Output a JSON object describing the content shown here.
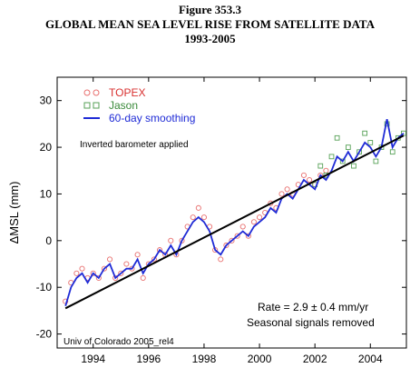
{
  "figure": {
    "number": "Figure 353.3",
    "title": "GLOBAL MEAN SEA LEVEL RISE FROM SATELLITE DATA",
    "subtitle": "1993-2005"
  },
  "chart_data": {
    "type": "scatter",
    "xlim": [
      1992.7,
      2005.3
    ],
    "ylim": [
      -23,
      35
    ],
    "xticks": [
      1994,
      1996,
      1998,
      2000,
      2002,
      2004
    ],
    "yticks": [
      -20,
      -10,
      0,
      10,
      20,
      30
    ],
    "xlabel": "",
    "ylabel": "ΔMSL (mm)",
    "grid": false,
    "legend_position": "top-left",
    "annotations": {
      "inverted_barometer": "Inverted barometer applied",
      "rate": "Rate = 2.9 ± 0.4 mm/yr",
      "seasonal": "Seasonal signals removed",
      "source": "Univ of Colorado 2005_rel4"
    },
    "trend": {
      "name": "",
      "x": [
        1993.0,
        2005.2
      ],
      "y": [
        -14.5,
        22.5
      ],
      "color": "#000000"
    },
    "series": [
      {
        "name": "TOPEX",
        "marker": "circle",
        "color": "#e8706f",
        "x": [
          1993.0,
          1993.2,
          1993.4,
          1993.6,
          1993.8,
          1994.0,
          1994.2,
          1994.4,
          1994.6,
          1994.8,
          1995.0,
          1995.2,
          1995.4,
          1995.6,
          1995.8,
          1996.0,
          1996.2,
          1996.4,
          1996.6,
          1996.8,
          1997.0,
          1997.2,
          1997.4,
          1997.6,
          1997.8,
          1998.0,
          1998.2,
          1998.4,
          1998.6,
          1998.8,
          1999.0,
          1999.2,
          1999.4,
          1999.6,
          1999.8,
          2000.0,
          2000.2,
          2000.4,
          2000.6,
          2000.8,
          2001.0,
          2001.2,
          2001.4,
          2001.6,
          2001.8,
          2002.0,
          2002.2,
          2002.4
        ],
        "y": [
          -13,
          -9,
          -7,
          -6,
          -8,
          -7,
          -8,
          -6,
          -4,
          -8,
          -7,
          -5,
          -6,
          -3,
          -8,
          -5,
          -4,
          -2,
          -3,
          0,
          -3,
          0,
          3,
          5,
          7,
          5,
          3,
          -2,
          -4,
          -1,
          0,
          1,
          3,
          1,
          4,
          5,
          6,
          8,
          7,
          10,
          11,
          10,
          12,
          14,
          13,
          12,
          14,
          15
        ]
      },
      {
        "name": "Jason",
        "marker": "square",
        "color": "#57a157",
        "x": [
          2002.0,
          2002.2,
          2002.4,
          2002.6,
          2002.8,
          2003.0,
          2003.2,
          2003.4,
          2003.6,
          2003.8,
          2004.0,
          2004.2,
          2004.4,
          2004.6,
          2004.8,
          2005.0,
          2005.2
        ],
        "y": [
          12,
          16,
          14,
          18,
          22,
          17,
          20,
          16,
          19,
          23,
          21,
          17,
          20,
          25,
          19,
          22,
          23
        ]
      },
      {
        "name": "60-day smoothing",
        "marker": "line",
        "color": "#1f2bd6",
        "x": [
          1993.0,
          1993.2,
          1993.4,
          1993.6,
          1993.8,
          1994.0,
          1994.2,
          1994.4,
          1994.6,
          1994.8,
          1995.0,
          1995.2,
          1995.4,
          1995.6,
          1995.8,
          1996.0,
          1996.2,
          1996.4,
          1996.6,
          1996.8,
          1997.0,
          1997.2,
          1997.4,
          1997.6,
          1997.8,
          1998.0,
          1998.2,
          1998.4,
          1998.6,
          1998.8,
          1999.0,
          1999.2,
          1999.4,
          1999.6,
          1999.8,
          2000.0,
          2000.2,
          2000.4,
          2000.6,
          2000.8,
          2001.0,
          2001.2,
          2001.4,
          2001.6,
          2001.8,
          2002.0,
          2002.2,
          2002.4,
          2002.6,
          2002.8,
          2003.0,
          2003.2,
          2003.4,
          2003.6,
          2003.8,
          2004.0,
          2004.2,
          2004.4,
          2004.6,
          2004.8,
          2005.0,
          2005.2
        ],
        "y": [
          -14,
          -10,
          -8,
          -7,
          -9,
          -7,
          -8,
          -6,
          -5,
          -8,
          -7,
          -6,
          -6,
          -4,
          -7,
          -5,
          -4,
          -2,
          -3,
          -1,
          -3,
          0,
          2,
          4,
          5,
          4,
          2,
          -2,
          -3,
          -1,
          0,
          1,
          2,
          1,
          3,
          4,
          5,
          7,
          6,
          9,
          10,
          9,
          11,
          13,
          12,
          11,
          14,
          13,
          15,
          18,
          17,
          19,
          17,
          19,
          21,
          20,
          18,
          20,
          26,
          20,
          22,
          23
        ]
      }
    ]
  }
}
